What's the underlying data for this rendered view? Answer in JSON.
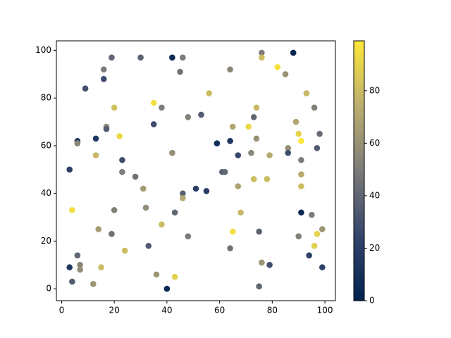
{
  "chart_data": {
    "type": "scatter",
    "x": [
      3,
      3,
      4,
      4,
      6,
      6,
      6,
      7,
      7,
      9,
      12,
      13,
      13,
      14,
      15,
      16,
      16,
      17,
      17,
      19,
      19,
      20,
      20,
      22,
      23,
      23,
      24,
      28,
      30,
      31,
      32,
      33,
      35,
      35,
      36,
      38,
      38,
      40,
      42,
      42,
      43,
      43,
      45,
      46,
      46,
      46,
      48,
      48,
      51,
      53,
      55,
      56,
      59,
      61,
      62,
      64,
      64,
      64,
      65,
      65,
      67,
      67,
      68,
      71,
      72,
      73,
      73,
      74,
      74,
      75,
      75,
      76,
      76,
      76,
      78,
      79,
      79,
      82,
      85,
      86,
      86,
      88,
      89,
      90,
      90,
      91,
      91,
      91,
      91,
      91,
      93,
      94,
      95,
      96,
      96,
      97,
      97,
      98,
      99,
      99
    ],
    "y": [
      50,
      9,
      3,
      33,
      62,
      61,
      14,
      10,
      8,
      84,
      2,
      63,
      56,
      25,
      9,
      92,
      88,
      68,
      67,
      97,
      23,
      76,
      33,
      64,
      54,
      49,
      16,
      47,
      97,
      42,
      34,
      18,
      78,
      69,
      6,
      76,
      27,
      0,
      97,
      57,
      32,
      5,
      91,
      97,
      40,
      38,
      72,
      22,
      42,
      73,
      41,
      82,
      61,
      49,
      49,
      62,
      92,
      17,
      68,
      24,
      56,
      43,
      32,
      68,
      57,
      72,
      46,
      76,
      63,
      24,
      1,
      99,
      97,
      11,
      46,
      56,
      10,
      93,
      90,
      59,
      57,
      99,
      70,
      65,
      22,
      62,
      54,
      48,
      43,
      32,
      82,
      14,
      31,
      76,
      18,
      59,
      23,
      65,
      25,
      9
    ],
    "c": [
      20,
      15,
      35,
      95,
      18,
      55,
      40,
      55,
      58,
      30,
      62,
      15,
      78,
      65,
      80,
      50,
      28,
      55,
      35,
      40,
      45,
      82,
      52,
      92,
      28,
      50,
      80,
      45,
      38,
      65,
      58,
      35,
      95,
      28,
      62,
      50,
      80,
      5,
      5,
      58,
      40,
      88,
      45,
      50,
      38,
      72,
      52,
      50,
      20,
      35,
      18,
      80,
      8,
      38,
      40,
      15,
      55,
      45,
      70,
      95,
      25,
      68,
      78,
      92,
      55,
      40,
      80,
      78,
      60,
      38,
      40,
      50,
      80,
      62,
      80,
      72,
      30,
      96,
      60,
      60,
      28,
      3,
      70,
      90,
      52,
      98,
      50,
      72,
      80,
      5,
      78,
      22,
      50,
      52,
      88,
      35,
      90,
      42,
      62,
      22
    ],
    "xlim": [
      -2,
      104
    ],
    "ylim": [
      -5,
      104
    ],
    "xticks": [
      0,
      20,
      40,
      60,
      80,
      100
    ],
    "yticks": [
      0,
      20,
      40,
      60,
      80,
      100
    ],
    "colorbar": {
      "lim": [
        0,
        99
      ],
      "ticks": [
        0,
        20,
        40,
        60,
        80
      ],
      "colormap": [
        "#00224e",
        "#35456c",
        "#7c7b78",
        "#bcaf6f",
        "#fee838"
      ]
    }
  }
}
